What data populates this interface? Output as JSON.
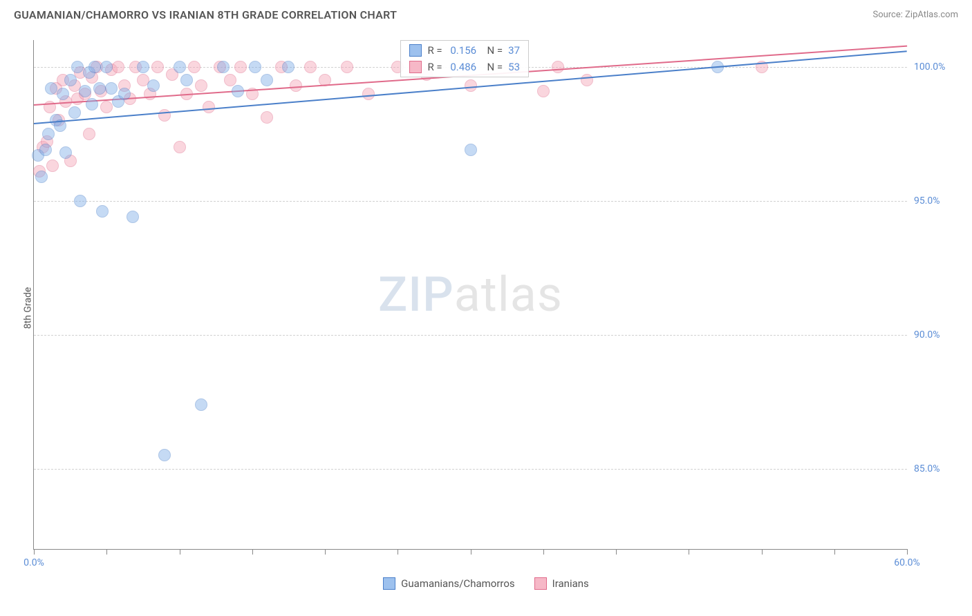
{
  "header": {
    "title": "GUAMANIAN/CHAMORRO VS IRANIAN 8TH GRADE CORRELATION CHART",
    "source": "Source: ZipAtlas.com"
  },
  "chart": {
    "type": "scatter",
    "ylabel": "8th Grade",
    "xlim": [
      0,
      60
    ],
    "ylim": [
      82,
      101
    ],
    "xtick_step": 5,
    "ytick_step": 5,
    "xtick_labels": {
      "0": "0.0%",
      "60": "60.0%"
    },
    "ytick_labels": {
      "85": "85.0%",
      "90": "90.0%",
      "95": "95.0%",
      "100": "100.0%"
    },
    "grid_color": "#d0d0d0",
    "background_color": "#ffffff",
    "axis_color": "#888888",
    "tick_label_color": "#5b8dd6",
    "point_radius": 9,
    "point_opacity": 0.45,
    "series": {
      "guam": {
        "label": "Guamanians/Chamorros",
        "fill_color": "#7faee8",
        "stroke_color": "#4a7fc9",
        "trend": {
          "x1": 0,
          "y1": 97.9,
          "x2": 60,
          "y2": 100.6
        },
        "R": "0.156",
        "N": "37",
        "points": [
          [
            0.3,
            96.7
          ],
          [
            0.5,
            95.9
          ],
          [
            0.8,
            96.9
          ],
          [
            1.0,
            97.5
          ],
          [
            1.2,
            99.2
          ],
          [
            1.5,
            98.0
          ],
          [
            1.8,
            97.8
          ],
          [
            2.0,
            99.0
          ],
          [
            2.2,
            96.8
          ],
          [
            2.5,
            99.5
          ],
          [
            2.8,
            98.3
          ],
          [
            3.0,
            100.0
          ],
          [
            3.2,
            95.0
          ],
          [
            3.5,
            99.1
          ],
          [
            3.8,
            99.8
          ],
          [
            4.0,
            98.6
          ],
          [
            4.2,
            100.0
          ],
          [
            4.5,
            99.2
          ],
          [
            4.7,
            94.6
          ],
          [
            5.0,
            100.0
          ],
          [
            5.3,
            99.2
          ],
          [
            5.8,
            98.7
          ],
          [
            6.2,
            99.0
          ],
          [
            6.8,
            94.4
          ],
          [
            7.5,
            100.0
          ],
          [
            8.2,
            99.3
          ],
          [
            9.0,
            85.5
          ],
          [
            10.0,
            100.0
          ],
          [
            10.5,
            99.5
          ],
          [
            11.5,
            87.4
          ],
          [
            13.0,
            100.0
          ],
          [
            14.0,
            99.1
          ],
          [
            15.2,
            100.0
          ],
          [
            16.0,
            99.5
          ],
          [
            17.5,
            100.0
          ],
          [
            30.0,
            96.9
          ],
          [
            47.0,
            100.0
          ]
        ]
      },
      "iran": {
        "label": "Iranians",
        "fill_color": "#f4a6b8",
        "stroke_color": "#e06a8a",
        "trend": {
          "x1": 0,
          "y1": 98.6,
          "x2": 60,
          "y2": 100.8
        },
        "R": "0.486",
        "N": "53",
        "points": [
          [
            0.4,
            96.1
          ],
          [
            0.6,
            97.0
          ],
          [
            0.9,
            97.2
          ],
          [
            1.1,
            98.5
          ],
          [
            1.3,
            96.3
          ],
          [
            1.5,
            99.2
          ],
          [
            1.7,
            98.0
          ],
          [
            2.0,
            99.5
          ],
          [
            2.2,
            98.7
          ],
          [
            2.5,
            96.5
          ],
          [
            2.8,
            99.3
          ],
          [
            3.0,
            98.8
          ],
          [
            3.2,
            99.8
          ],
          [
            3.5,
            99.0
          ],
          [
            3.8,
            97.5
          ],
          [
            4.0,
            99.6
          ],
          [
            4.3,
            100.0
          ],
          [
            4.6,
            99.1
          ],
          [
            5.0,
            98.5
          ],
          [
            5.3,
            99.9
          ],
          [
            5.8,
            100.0
          ],
          [
            6.2,
            99.3
          ],
          [
            6.6,
            98.8
          ],
          [
            7.0,
            100.0
          ],
          [
            7.5,
            99.5
          ],
          [
            8.0,
            99.0
          ],
          [
            8.5,
            100.0
          ],
          [
            9.0,
            98.2
          ],
          [
            9.5,
            99.7
          ],
          [
            10.0,
            97.0
          ],
          [
            10.5,
            99.0
          ],
          [
            11.0,
            100.0
          ],
          [
            11.5,
            99.3
          ],
          [
            12.0,
            98.5
          ],
          [
            12.8,
            100.0
          ],
          [
            13.5,
            99.5
          ],
          [
            14.2,
            100.0
          ],
          [
            15.0,
            99.0
          ],
          [
            16.0,
            98.1
          ],
          [
            17.0,
            100.0
          ],
          [
            18.0,
            99.3
          ],
          [
            19.0,
            100.0
          ],
          [
            20.0,
            99.5
          ],
          [
            21.5,
            100.0
          ],
          [
            23.0,
            99.0
          ],
          [
            25.0,
            100.0
          ],
          [
            27.0,
            99.7
          ],
          [
            30.0,
            99.3
          ],
          [
            33.0,
            100.0
          ],
          [
            35.0,
            99.1
          ],
          [
            36.0,
            100.0
          ],
          [
            38.0,
            99.5
          ],
          [
            50.0,
            100.0
          ]
        ]
      }
    },
    "stats_box": {
      "left_pct": 42,
      "top_pct": 0
    },
    "watermark": {
      "zip": "ZIP",
      "atlas": "atlas"
    }
  },
  "legend_swatch_fill": {
    "guam": "#9dc1ee",
    "iran": "#f6b8c7"
  },
  "legend_swatch_stroke": {
    "guam": "#4a7fc9",
    "iran": "#e06a8a"
  }
}
